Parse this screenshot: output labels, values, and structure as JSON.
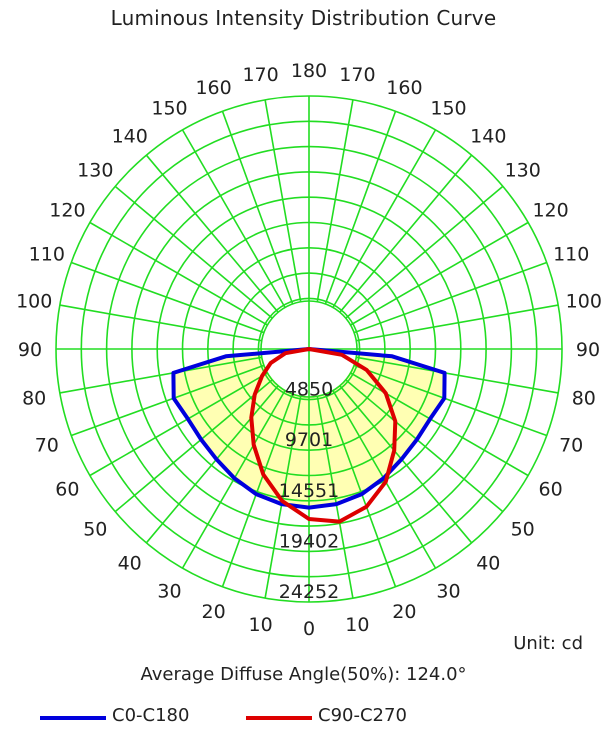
{
  "chart_data": {
    "type": "polar",
    "title": "Luminous Intensity Distribution Curve",
    "unit": "Unit: cd",
    "average_diffuse_angle": "Average Diffuse Angle(50%): 124.0°",
    "angle_labels": [
      "0",
      "10",
      "20",
      "30",
      "40",
      "50",
      "60",
      "70",
      "80",
      "90",
      "100",
      "110",
      "120",
      "130",
      "140",
      "150",
      "160",
      "170",
      "180"
    ],
    "radial_labels": [
      "4850",
      "9701",
      "14551",
      "19402",
      "24252"
    ],
    "radial_ticks": [
      4850,
      9701,
      14551,
      19402,
      24252
    ],
    "max_intensity": 24252,
    "grid": true,
    "colors": {
      "grid": "#22dd22",
      "fill": "#ffffb3",
      "c0": "#0000dd",
      "c90": "#dd0000"
    },
    "series": [
      {
        "name": "C0-C180",
        "color": "#0000dd",
        "angles": [
          0,
          10,
          20,
          30,
          40,
          50,
          60,
          70,
          80,
          85,
          90
        ],
        "values": [
          15200,
          15100,
          14800,
          14300,
          13800,
          13500,
          13400,
          13800,
          13200,
          8000,
          0
        ]
      },
      {
        "name": "C90-C270 (C90 side)",
        "color": "#dd0000",
        "angles": [
          0,
          10,
          20,
          30,
          40,
          50,
          60,
          70,
          80,
          90
        ],
        "values": [
          16300,
          16800,
          16100,
          14700,
          12700,
          10800,
          8500,
          5900,
          3200,
          0
        ]
      },
      {
        "name": "C90-C270 (C270 side)",
        "color": "#dd0000",
        "angles": [
          0,
          10,
          20,
          30,
          40,
          50,
          60,
          70,
          80,
          90
        ],
        "values": [
          16300,
          14800,
          12800,
          10600,
          8600,
          6800,
          5200,
          3900,
          2300,
          0
        ]
      }
    ]
  },
  "legend": [
    {
      "label": "C0-C180",
      "color": "#0000dd"
    },
    {
      "label": "C90-C270",
      "color": "#dd0000"
    }
  ]
}
